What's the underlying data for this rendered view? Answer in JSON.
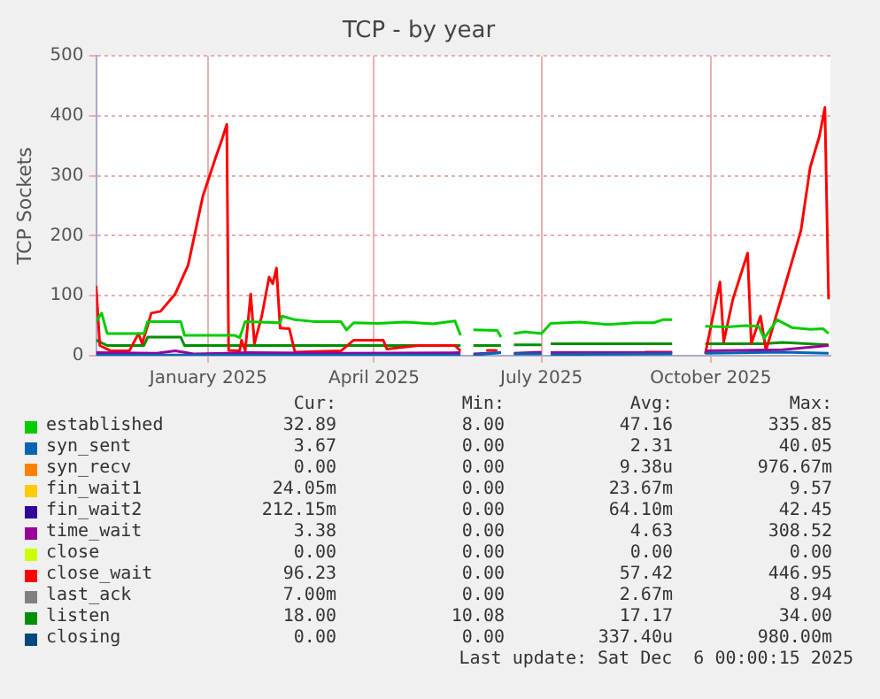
{
  "chart_data": {
    "type": "line",
    "title": "TCP - by year",
    "ylabel": "TCP Sockets",
    "xlim": [
      "2024-11-01",
      "2025-12-05"
    ],
    "xticks": [
      {
        "value": "2025-01-01",
        "label": "January 2025"
      },
      {
        "value": "2025-04-01",
        "label": "April 2025"
      },
      {
        "value": "2025-07-01",
        "label": "July 2025"
      },
      {
        "value": "2025-10-01",
        "label": "October 2025"
      }
    ],
    "ylim": [
      0,
      500
    ],
    "yticks": [
      0,
      100,
      200,
      300,
      400,
      500
    ],
    "grid": true,
    "legend": "bottom",
    "marker": "none",
    "line_style": "solid",
    "series": [
      {
        "name": "established",
        "color": "#00cc00",
        "x": [
          "2024-11-01",
          "2024-11-04",
          "2024-11-07",
          "2024-11-19",
          "2024-11-27",
          "2024-11-29",
          "2024-12-17",
          "2024-12-19",
          "2025-01-15",
          "2025-01-18",
          "2025-01-21",
          "2025-02-09",
          "2025-02-10",
          "2025-02-17",
          "2025-02-27",
          "2025-03-14",
          "2025-03-17",
          "2025-03-21",
          "2025-04-03",
          "2025-04-18",
          "2025-05-03",
          "2025-05-15",
          "2025-05-18",
          "2025-05-21",
          "2025-05-25",
          "2025-06-07",
          "2025-06-09",
          "2025-06-12",
          "2025-06-16",
          "2025-06-22",
          "2025-07-01",
          "2025-07-06",
          "2025-07-22",
          "2025-08-06",
          "2025-08-21",
          "2025-08-31",
          "2025-09-05",
          "2025-09-10",
          "2025-09-19",
          "2025-09-28",
          "2025-10-10",
          "2025-10-20",
          "2025-10-27",
          "2025-10-30",
          "2025-11-06",
          "2025-11-14",
          "2025-11-24",
          "2025-12-01",
          "2025-12-04"
        ],
        "values": [
          57,
          71,
          37,
          37,
          37,
          57,
          57,
          34,
          34,
          30,
          57,
          55,
          66,
          60,
          57,
          57,
          43,
          55,
          54,
          56,
          53,
          58,
          34,
          null,
          43,
          42,
          31,
          null,
          37,
          40,
          37,
          54,
          56,
          52,
          55,
          55,
          60,
          60,
          null,
          49,
          48,
          50,
          49,
          29,
          60,
          47,
          44,
          45,
          37
        ]
      },
      {
        "name": "syn_sent",
        "color": "#0066b3",
        "x": [
          "2024-11-01",
          "2025-05-18",
          "2025-05-21",
          "2025-05-25",
          "2025-06-09",
          "2025-06-12",
          "2025-06-16",
          "2025-07-01",
          "2025-07-03",
          "2025-07-06",
          "2025-09-10",
          "2025-09-19",
          "2025-09-28",
          "2025-11-09",
          "2025-12-04"
        ],
        "values": [
          1,
          1,
          null,
          1,
          5,
          null,
          3,
          3,
          null,
          2,
          3,
          null,
          4,
          6,
          4
        ]
      },
      {
        "name": "syn_recv",
        "color": "#ff8000"
      },
      {
        "name": "fin_wait1",
        "color": "#ffcc00"
      },
      {
        "name": "fin_wait2",
        "color": "#330099"
      },
      {
        "name": "time_wait",
        "color": "#990099",
        "x": [
          "2024-11-01",
          "2024-12-04",
          "2024-12-14",
          "2024-12-24",
          "2025-01-23",
          "2025-03-14",
          "2025-05-18",
          "2025-05-21",
          "2025-05-25",
          "2025-06-09",
          "2025-06-12",
          "2025-06-16",
          "2025-07-01",
          "2025-07-03",
          "2025-07-06",
          "2025-09-10",
          "2025-09-19",
          "2025-09-28",
          "2025-11-09",
          "2025-12-04"
        ],
        "values": [
          5,
          4,
          8,
          3,
          5,
          4,
          5,
          null,
          3,
          5,
          null,
          4,
          6,
          null,
          5,
          5,
          null,
          8,
          10,
          17
        ]
      },
      {
        "name": "close",
        "color": "#ccff00"
      },
      {
        "name": "close_wait",
        "color": "#ff0000",
        "x": [
          "2024-11-01",
          "2024-11-03",
          "2024-11-09",
          "2024-11-19",
          "2024-11-24",
          "2024-11-26",
          "2024-12-01",
          "2024-12-06",
          "2024-12-14",
          "2024-12-21",
          "2024-12-29",
          "2025-01-05",
          "2025-01-08",
          "2025-01-11",
          "2025-01-12",
          "2025-01-18",
          "2025-01-19",
          "2025-01-21",
          "2025-01-24",
          "2025-01-26",
          "2025-01-30",
          "2025-02-03",
          "2025-02-05",
          "2025-02-07",
          "2025-02-09",
          "2025-02-14",
          "2025-02-17",
          "2025-03-14",
          "2025-03-21",
          "2025-04-06",
          "2025-04-08",
          "2025-04-25",
          "2025-05-15",
          "2025-05-18",
          "2025-05-21",
          "2025-06-01",
          "2025-06-07",
          "2025-06-12",
          "2025-08-26",
          "2025-09-10",
          "2025-09-19",
          "2025-09-28",
          "2025-10-06",
          "2025-10-08",
          "2025-10-13",
          "2025-10-21",
          "2025-10-23",
          "2025-10-28",
          "2025-10-31",
          "2025-11-09",
          "2025-11-19",
          "2025-11-24",
          "2025-11-29",
          "2025-12-02",
          "2025-12-04"
        ],
        "values": [
          117,
          17,
          8,
          8,
          37,
          20,
          71,
          74,
          103,
          151,
          266,
          331,
          357,
          386,
          9,
          8,
          26,
          8,
          103,
          20,
          66,
          131,
          120,
          146,
          46,
          45,
          6,
          8,
          26,
          26,
          11,
          17,
          17,
          8,
          null,
          9,
          9,
          null,
          6,
          6,
          null,
          3,
          123,
          23,
          94,
          171,
          20,
          66,
          9,
          103,
          209,
          314,
          366,
          414,
          94
        ]
      },
      {
        "name": "last_ack",
        "color": "#808080"
      },
      {
        "name": "listen",
        "color": "#008f00",
        "x": [
          "2024-11-01",
          "2024-11-07",
          "2024-11-27",
          "2024-11-29",
          "2024-12-17",
          "2024-12-19",
          "2025-05-18",
          "2025-05-21",
          "2025-05-25",
          "2025-06-09",
          "2025-06-12",
          "2025-06-16",
          "2025-07-01",
          "2025-07-03",
          "2025-07-06",
          "2025-09-10",
          "2025-09-19",
          "2025-09-28",
          "2025-10-30",
          "2025-11-09",
          "2025-12-04"
        ],
        "values": [
          26,
          17,
          17,
          31,
          31,
          17,
          17,
          null,
          17,
          17,
          null,
          18,
          18,
          null,
          20,
          20,
          null,
          20,
          20,
          22,
          18
        ]
      },
      {
        "name": "closing",
        "color": "#00487d"
      }
    ],
    "annotations": [
      "Cur:",
      "Min:",
      "Avg:",
      "Max:",
      "32.89",
      "8.00",
      "47.16",
      "335.85",
      "3.67",
      "0.00",
      "2.31",
      "40.05",
      "0.00",
      "0.00",
      "9.38u",
      "976.67m",
      "24.05m",
      "0.00",
      "23.67m",
      "9.57",
      "212.15m",
      "0.00",
      "64.10m",
      "42.45",
      "3.38",
      "0.00",
      "4.63",
      "308.52",
      "0.00",
      "0.00",
      "0.00",
      "0.00",
      "96.23",
      "0.00",
      "57.42",
      "446.95",
      "7.00m",
      "0.00",
      "2.67m",
      "8.94",
      "18.00",
      "10.08",
      "17.17",
      "34.00",
      "0.00",
      "0.00",
      "337.40u",
      "980.00m",
      "Last update: Sat Dec  6 00:00:15 2025"
    ]
  }
}
